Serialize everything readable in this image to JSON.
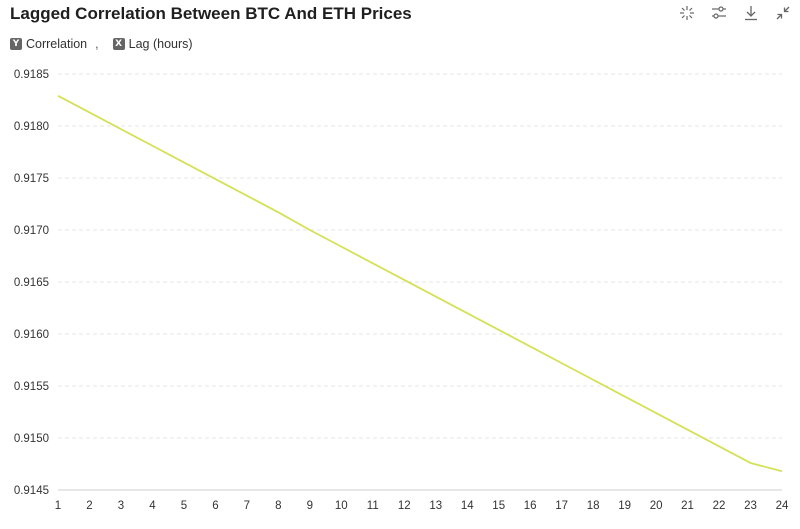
{
  "header": {
    "title": "Lagged Correlation Between BTC And ETH Prices"
  },
  "toolbar": {
    "icons": [
      "sparkle-icon",
      "sliders-icon",
      "download-icon",
      "collapse-icon"
    ]
  },
  "axis_chips": {
    "y": {
      "badge": "Y",
      "label": "Correlation"
    },
    "separator": ",",
    "x": {
      "badge": "X",
      "label": "Lag (hours)"
    }
  },
  "colors": {
    "line": "#d4e157",
    "grid": "#e6e6e6",
    "axis": "#cfcfcf"
  },
  "chart_data": {
    "type": "line",
    "title": "Lagged Correlation Between BTC And ETH Prices",
    "xlabel": "Lag (hours)",
    "ylabel": "Correlation",
    "x": [
      1,
      2,
      3,
      4,
      5,
      6,
      7,
      8,
      9,
      10,
      11,
      12,
      13,
      14,
      15,
      16,
      17,
      18,
      19,
      20,
      21,
      22,
      23,
      24
    ],
    "series": [
      {
        "name": "Correlation",
        "values": [
          0.91829,
          0.91813,
          0.91797,
          0.91781,
          0.91765,
          0.91749,
          0.91733,
          0.91717,
          0.917,
          0.91684,
          0.91668,
          0.91652,
          0.91636,
          0.9162,
          0.91604,
          0.91588,
          0.91572,
          0.91556,
          0.9154,
          0.91524,
          0.91508,
          0.91492,
          0.91476,
          0.91468
        ]
      }
    ],
    "yticks": [
      "0.9145",
      "0.9150",
      "0.9155",
      "0.9160",
      "0.9165",
      "0.9170",
      "0.9175",
      "0.9180",
      "0.9185"
    ],
    "ylim": [
      0.9145,
      0.9185
    ],
    "xlim": [
      1,
      24
    ],
    "grid": true
  }
}
